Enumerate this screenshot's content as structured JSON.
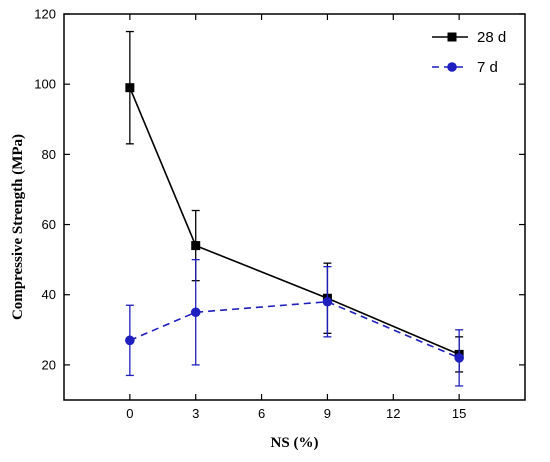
{
  "chart_data": {
    "type": "line",
    "xlabel": "NS (%)",
    "ylabel": "Compressive Strength (MPa)",
    "xlim": [
      -3,
      18
    ],
    "ylim": [
      10,
      120
    ],
    "xticks": [
      0,
      3,
      6,
      9,
      12,
      15
    ],
    "yticks": [
      20,
      40,
      60,
      80,
      100,
      120
    ],
    "grid": false,
    "legend_position": "top-right",
    "series": [
      {
        "name": "28 d",
        "color": "#000000",
        "marker": "square",
        "line_style": "solid",
        "x": [
          0,
          3,
          9,
          15
        ],
        "y": [
          99,
          54,
          39,
          23
        ],
        "error_low": [
          83,
          44,
          29,
          18
        ],
        "error_high": [
          115,
          64,
          49,
          28
        ]
      },
      {
        "name": "7 d",
        "color": "#1f1fbf",
        "marker": "circle",
        "line_style": "dashed",
        "x": [
          0,
          3,
          9,
          15
        ],
        "y": [
          27,
          35,
          38,
          22
        ],
        "error_low": [
          17,
          20,
          28,
          14
        ],
        "error_high": [
          37,
          50,
          48,
          30
        ]
      }
    ]
  }
}
